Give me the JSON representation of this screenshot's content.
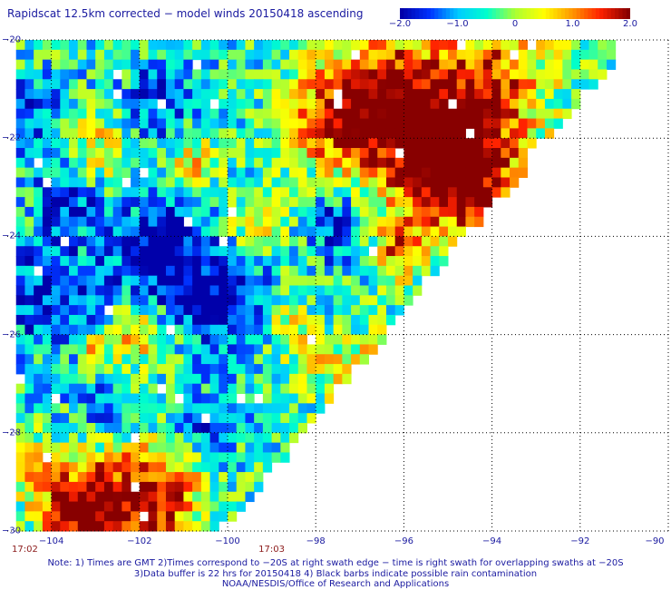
{
  "title": "Rapidscat 12.5km corrected − model winds 20150418 ascending",
  "colorbar": {
    "labels": [
      "−2.0",
      "−1.0",
      "0",
      "1.0",
      "2.0"
    ],
    "values": [
      -2.0,
      -1.0,
      0,
      1.0,
      2.0
    ],
    "min": -2.0,
    "max": 2.0,
    "colors": [
      "#0000aa",
      "#0033ff",
      "#00ccff",
      "#00ffcc",
      "#aaff33",
      "#ffff00",
      "#ff9900",
      "#ff2200",
      "#880000"
    ]
  },
  "map": {
    "lat_range": [
      -30,
      -20
    ],
    "lon_range": [
      -105,
      -90
    ],
    "lat_labels": [
      "−20",
      "−22",
      "−24",
      "−26",
      "−28",
      "−30"
    ],
    "lat_values": [
      -20,
      -22,
      -24,
      -26,
      -28,
      -30
    ],
    "lon_labels": [
      "−104",
      "−102",
      "−100",
      "−98",
      "−96",
      "−94",
      "−92",
      "−90"
    ],
    "lon_values": [
      -104,
      -102,
      -100,
      -98,
      -96,
      -94,
      -92,
      -90
    ],
    "time_labels": [
      "17:02",
      "17:03"
    ],
    "time_lons": [
      -104.6,
      -99
    ]
  },
  "notes": [
    "Note: 1) Times are GMT 2)Times correspond to −20S at right swath edge − time is right swath for overlapping swaths at −20S",
    "3)Data buffer is 22 hrs for 20150418 4) Black barbs indicate possible rain contamination",
    "NOAA/NESDIS/Office of Research and Applications"
  ]
}
